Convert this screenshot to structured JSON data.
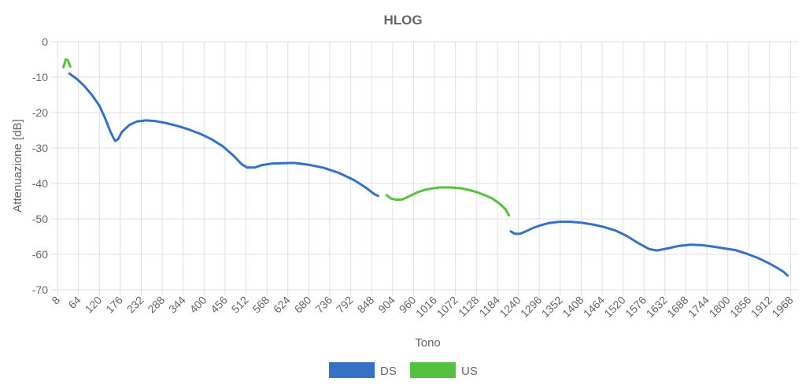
{
  "chart_data": {
    "type": "line",
    "title": "HLOG",
    "xlabel": "Tono",
    "ylabel": "Attenuazione [dB]",
    "xlim": [
      8,
      1988
    ],
    "ylim": [
      -70,
      0
    ],
    "x_ticks": [
      "8",
      "64",
      "120",
      "176",
      "232",
      "288",
      "344",
      "400",
      "456",
      "512",
      "568",
      "624",
      "680",
      "736",
      "792",
      "848",
      "904",
      "960",
      "1016",
      "1072",
      "1128",
      "1184",
      "1240",
      "1296",
      "1352",
      "1408",
      "1464",
      "1520",
      "1576",
      "1632",
      "1688",
      "1744",
      "1800",
      "1856",
      "1912",
      "1968"
    ],
    "y_ticks": [
      "0",
      "-10",
      "-20",
      "-30",
      "-40",
      "-50",
      "-60",
      "-70"
    ],
    "grid": true,
    "legend_position": "bottom",
    "series": [
      {
        "name": "DS",
        "color": "#3572c6",
        "segments": [
          [
            [
              40,
              -9
            ],
            [
              60,
              -10.5
            ],
            [
              80,
              -12.5
            ],
            [
              100,
              -15
            ],
            [
              120,
              -18
            ],
            [
              135,
              -21.5
            ],
            [
              150,
              -25.5
            ],
            [
              162,
              -28
            ],
            [
              170,
              -27.5
            ],
            [
              180,
              -25.5
            ],
            [
              200,
              -23.5
            ],
            [
              220,
              -22.5
            ],
            [
              245,
              -22.2
            ],
            [
              270,
              -22.4
            ],
            [
              300,
              -23
            ],
            [
              330,
              -23.8
            ],
            [
              360,
              -24.8
            ],
            [
              390,
              -26
            ],
            [
              420,
              -27.5
            ],
            [
              450,
              -29.5
            ],
            [
              480,
              -32.3
            ],
            [
              500,
              -34.5
            ],
            [
              515,
              -35.5
            ],
            [
              535,
              -35.5
            ],
            [
              555,
              -34.8
            ],
            [
              580,
              -34.4
            ],
            [
              610,
              -34.3
            ],
            [
              640,
              -34.2
            ],
            [
              680,
              -34.7
            ],
            [
              720,
              -35.6
            ],
            [
              760,
              -37
            ],
            [
              800,
              -39
            ],
            [
              830,
              -41
            ],
            [
              855,
              -43
            ],
            [
              865,
              -43.5
            ]
          ],
          [
            [
              1220,
              -53.5
            ],
            [
              1230,
              -54.2
            ],
            [
              1245,
              -54.2
            ],
            [
              1260,
              -53.5
            ],
            [
              1280,
              -52.5
            ],
            [
              1300,
              -51.8
            ],
            [
              1320,
              -51.2
            ],
            [
              1350,
              -50.8
            ],
            [
              1380,
              -50.8
            ],
            [
              1410,
              -51.1
            ],
            [
              1440,
              -51.6
            ],
            [
              1470,
              -52.3
            ],
            [
              1500,
              -53.3
            ],
            [
              1530,
              -54.8
            ],
            [
              1560,
              -56.8
            ],
            [
              1590,
              -58.5
            ],
            [
              1610,
              -58.9
            ],
            [
              1640,
              -58.3
            ],
            [
              1670,
              -57.6
            ],
            [
              1700,
              -57.3
            ],
            [
              1730,
              -57.4
            ],
            [
              1760,
              -57.8
            ],
            [
              1790,
              -58.3
            ],
            [
              1820,
              -58.8
            ],
            [
              1850,
              -59.8
            ],
            [
              1880,
              -61
            ],
            [
              1910,
              -62.5
            ],
            [
              1935,
              -64
            ],
            [
              1950,
              -65
            ],
            [
              1960,
              -66
            ]
          ]
        ]
      },
      {
        "name": "US",
        "color": "#55c13f",
        "segments": [
          [
            [
              24,
              -7.2
            ],
            [
              30,
              -5
            ],
            [
              36,
              -5.2
            ],
            [
              42,
              -7
            ]
          ],
          [
            [
              888,
              -43.3
            ],
            [
              900,
              -44.3
            ],
            [
              915,
              -44.6
            ],
            [
              930,
              -44.5
            ],
            [
              950,
              -43.5
            ],
            [
              970,
              -42.5
            ],
            [
              990,
              -41.8
            ],
            [
              1010,
              -41.4
            ],
            [
              1030,
              -41.1
            ],
            [
              1060,
              -41.1
            ],
            [
              1090,
              -41.4
            ],
            [
              1110,
              -41.9
            ],
            [
              1130,
              -42.5
            ],
            [
              1150,
              -43.3
            ],
            [
              1170,
              -44.2
            ],
            [
              1190,
              -45.7
            ],
            [
              1205,
              -47.2
            ],
            [
              1215,
              -49
            ]
          ]
        ]
      }
    ]
  }
}
